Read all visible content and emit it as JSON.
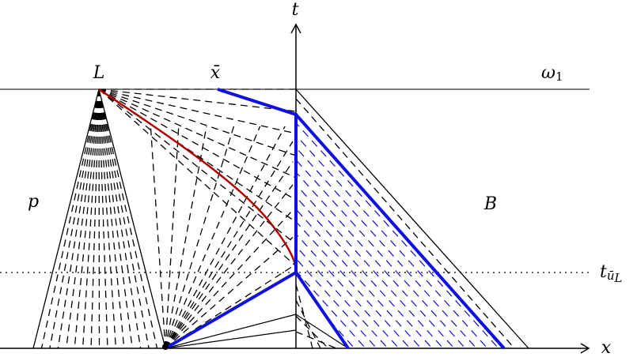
{
  "labels": {
    "t_axis": "t",
    "x_axis": "x",
    "L": "L",
    "xbar": "x̄",
    "omega1": {
      "base": "ω",
      "sub": "1"
    },
    "p": "p",
    "B": "B",
    "t_ubar_L": {
      "base": "t",
      "sub": "ū",
      "subsub": "L"
    }
  }
}
